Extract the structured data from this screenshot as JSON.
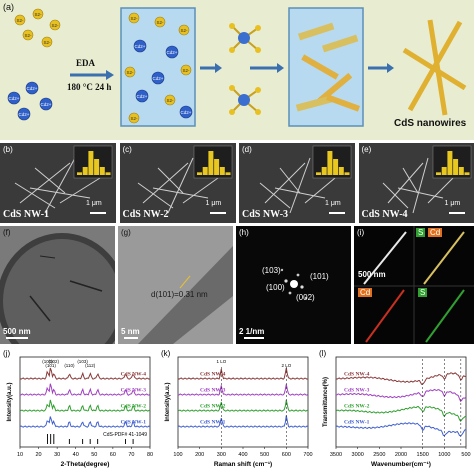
{
  "panel_a": {
    "letter": "(a)",
    "ions": {
      "cd": "Cd2+",
      "s": "S2-"
    },
    "eda_label": "EDA",
    "condition_label": "180 °C 24 h",
    "product_label": "CdS nanowires"
  },
  "sem_row": {
    "panels": [
      {
        "letter": "(b)",
        "title": "CdS NW-1",
        "scale": "1 μm"
      },
      {
        "letter": "(c)",
        "title": "CdS NW-2",
        "scale": "1 μm"
      },
      {
        "letter": "(d)",
        "title": "CdS NW-3",
        "scale": "1 μm"
      },
      {
        "letter": "(e)",
        "title": "CdS NW-4",
        "scale": "1 μm"
      }
    ],
    "histogram_values": [
      1,
      3,
      9,
      6,
      3,
      1
    ]
  },
  "tem_row": {
    "f": {
      "letter": "(f)",
      "scale": "500 nm"
    },
    "g": {
      "letter": "(g)",
      "scale": "5 nm",
      "lattice": "d(101)=0.31 nm"
    },
    "h": {
      "letter": "(h)",
      "scale": "2 1/nm",
      "spots": [
        "(103)",
        "(101)",
        "(100)",
        "(002)"
      ]
    },
    "i": {
      "letter": "(i)",
      "scale": "500 nm",
      "maps": [
        "S",
        "Cd",
        "Cd",
        "S"
      ]
    }
  },
  "chart_data": [
    {
      "type": "line",
      "letter": "(j)",
      "xlabel": "2-Theta(degree)",
      "ylabel": "Intensity(a.u.)",
      "xlim": [
        10,
        80
      ],
      "ticks": [
        "10",
        "20",
        "30",
        "40",
        "50",
        "60",
        "70",
        "80"
      ],
      "peak_labels": [
        "(100)",
        "(101)",
        "(102)",
        "(110)",
        "(103)",
        "(112)"
      ],
      "peaks": [
        24.8,
        26.5,
        28.2,
        36.6,
        43.7,
        47.8,
        51.8,
        66.8,
        70.9
      ],
      "series": [
        {
          "name": "CdS NW-4",
          "color": "#8B3A3A"
        },
        {
          "name": "CdS NW-3",
          "color": "#A040C0"
        },
        {
          "name": "CdS NW-2",
          "color": "#30A030"
        },
        {
          "name": "CdS NW-1",
          "color": "#4060D0"
        }
      ],
      "reference": "CdS-PDF# 41-1049"
    },
    {
      "type": "line",
      "letter": "(k)",
      "xlabel": "Raman shift (cm⁻¹)",
      "ylabel": "Intensity(a.u.)",
      "xlim": [
        100,
        700
      ],
      "ticks": [
        "100",
        "200",
        "300",
        "400",
        "500",
        "600",
        "700"
      ],
      "peak_labels": [
        "1 LO",
        "2 LO"
      ],
      "peaks": [
        300,
        600
      ],
      "series": [
        {
          "name": "CdS NW-4",
          "color": "#8B3A3A"
        },
        {
          "name": "CdS NW-3",
          "color": "#A040C0"
        },
        {
          "name": "CdS NW-2",
          "color": "#30A030"
        },
        {
          "name": "CdS NW-1",
          "color": "#4060D0"
        }
      ]
    },
    {
      "type": "line",
      "letter": "(l)",
      "xlabel": "Wavenumber(cm⁻¹)",
      "ylabel": "Transmittance(%)",
      "xlim": [
        3500,
        500
      ],
      "ticks": [
        "3500",
        "3000",
        "2500",
        "2000",
        "1500",
        "1000",
        "500"
      ],
      "dashed_lines": [
        1500,
        1000,
        620
      ],
      "series": [
        {
          "name": "CdS NW-4",
          "color": "#8B3A3A"
        },
        {
          "name": "CdS NW-3",
          "color": "#A040C0"
        },
        {
          "name": "CdS NW-2",
          "color": "#30A030"
        },
        {
          "name": "CdS NW-1",
          "color": "#4060D0"
        }
      ]
    }
  ]
}
